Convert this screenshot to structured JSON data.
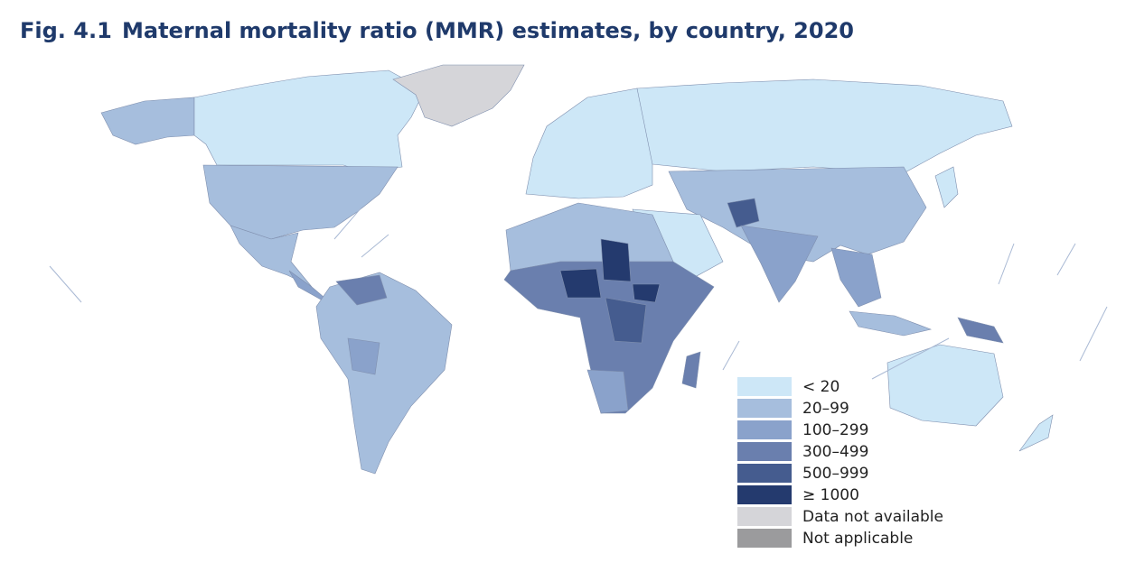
{
  "figure": {
    "number": "Fig. 4.1",
    "title": "Maternal mortality ratio (MMR) estimates, by country, 2020"
  },
  "legend": {
    "items": [
      {
        "label": "< 20",
        "color": "#cde7f7"
      },
      {
        "label": "20–99",
        "color": "#a6bedd"
      },
      {
        "label": "100–299",
        "color": "#8aa2cb"
      },
      {
        "label": "300–499",
        "color": "#6a7fae"
      },
      {
        "label": "500–999",
        "color": "#455c8f"
      },
      {
        "label": "≥ 1000",
        "color": "#243a6e"
      },
      {
        "label": "Data not available",
        "color": "#d5d5d9"
      },
      {
        "label": "Not applicable",
        "color": "#9b9b9d"
      }
    ]
  }
}
